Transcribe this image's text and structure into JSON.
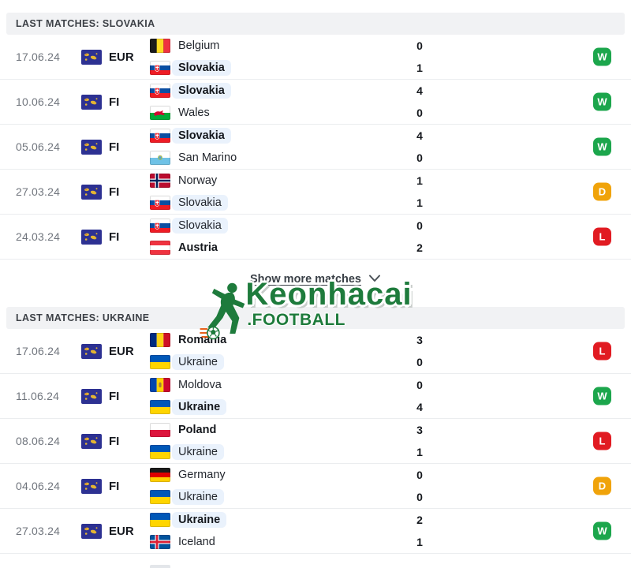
{
  "sections": [
    {
      "title": "LAST MATCHES: SLOVAKIA",
      "rows": [
        {
          "date": "17.06.24",
          "competition": "EUR",
          "result": "W",
          "teams": [
            {
              "name": "Belgium",
              "flag": "be",
              "score": "0",
              "bold": false,
              "highlight": false
            },
            {
              "name": "Slovakia",
              "flag": "sk",
              "score": "1",
              "bold": true,
              "highlight": true
            }
          ]
        },
        {
          "date": "10.06.24",
          "competition": "FI",
          "result": "W",
          "teams": [
            {
              "name": "Slovakia",
              "flag": "sk",
              "score": "4",
              "bold": true,
              "highlight": true
            },
            {
              "name": "Wales",
              "flag": "wa",
              "score": "0",
              "bold": false,
              "highlight": false
            }
          ]
        },
        {
          "date": "05.06.24",
          "competition": "FI",
          "result": "W",
          "teams": [
            {
              "name": "Slovakia",
              "flag": "sk",
              "score": "4",
              "bold": true,
              "highlight": true
            },
            {
              "name": "San Marino",
              "flag": "sm",
              "score": "0",
              "bold": false,
              "highlight": false
            }
          ]
        },
        {
          "date": "27.03.24",
          "competition": "FI",
          "result": "D",
          "teams": [
            {
              "name": "Norway",
              "flag": "no",
              "score": "1",
              "bold": false,
              "highlight": false
            },
            {
              "name": "Slovakia",
              "flag": "sk",
              "score": "1",
              "bold": false,
              "highlight": true
            }
          ]
        },
        {
          "date": "24.03.24",
          "competition": "FI",
          "result": "L",
          "teams": [
            {
              "name": "Slovakia",
              "flag": "sk",
              "score": "0",
              "bold": false,
              "highlight": true
            },
            {
              "name": "Austria",
              "flag": "at",
              "score": "2",
              "bold": true,
              "highlight": false
            }
          ]
        }
      ]
    },
    {
      "title": "LAST MATCHES: UKRAINE",
      "rows": [
        {
          "date": "17.06.24",
          "competition": "EUR",
          "result": "L",
          "teams": [
            {
              "name": "Romania",
              "flag": "ro",
              "score": "3",
              "bold": true,
              "highlight": false
            },
            {
              "name": "Ukraine",
              "flag": "ua",
              "score": "0",
              "bold": false,
              "highlight": true
            }
          ]
        },
        {
          "date": "11.06.24",
          "competition": "FI",
          "result": "W",
          "teams": [
            {
              "name": "Moldova",
              "flag": "md",
              "score": "0",
              "bold": false,
              "highlight": false
            },
            {
              "name": "Ukraine",
              "flag": "ua",
              "score": "4",
              "bold": true,
              "highlight": true
            }
          ]
        },
        {
          "date": "08.06.24",
          "competition": "FI",
          "result": "L",
          "teams": [
            {
              "name": "Poland",
              "flag": "pl",
              "score": "3",
              "bold": true,
              "highlight": false
            },
            {
              "name": "Ukraine",
              "flag": "ua",
              "score": "1",
              "bold": false,
              "highlight": true
            }
          ]
        },
        {
          "date": "04.06.24",
          "competition": "FI",
          "result": "D",
          "teams": [
            {
              "name": "Germany",
              "flag": "de",
              "score": "0",
              "bold": false,
              "highlight": false
            },
            {
              "name": "Ukraine",
              "flag": "ua",
              "score": "0",
              "bold": false,
              "highlight": true
            }
          ]
        },
        {
          "date": "27.03.24",
          "competition": "EUR",
          "result": "W",
          "teams": [
            {
              "name": "Ukraine",
              "flag": "ua",
              "score": "2",
              "bold": true,
              "highlight": true
            },
            {
              "name": "Iceland",
              "flag": "is",
              "score": "1",
              "bold": false,
              "highlight": false
            }
          ]
        }
      ]
    }
  ],
  "show_more": {
    "label": "Show more matches"
  },
  "logo": {
    "title": "Keonhacai",
    "subtitle": ".FOOTBALL"
  },
  "result_colors": {
    "W": "#1CA64C",
    "D": "#F0A30A",
    "L": "#E11B22"
  },
  "highlight_color": "#EAF2FC"
}
